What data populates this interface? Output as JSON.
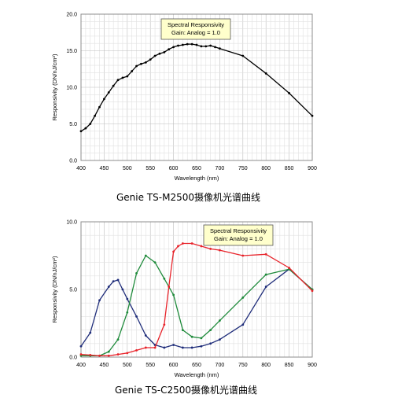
{
  "chart_data": [
    {
      "type": "line",
      "caption": "Genie TS-M2500摄像机光谱曲线",
      "annotation": [
        "Spectral Responsivity",
        "Gain: Analog = 1.0"
      ],
      "xlabel": "Wavelength (nm)",
      "ylabel": "Responsivity (DN/nJ/cm²)",
      "xlim": [
        400,
        900
      ],
      "ylim": [
        0,
        20
      ],
      "xticks": [
        "400",
        "450",
        "500",
        "550",
        "600",
        "650",
        "700",
        "750",
        "800",
        "850",
        "900"
      ],
      "yticks": [
        "0.0",
        "5.0",
        "10.0",
        "15.0",
        "20.0"
      ],
      "grid": true,
      "series": [
        {
          "color": "#000000",
          "x": [
            400,
            410,
            420,
            430,
            440,
            450,
            460,
            470,
            480,
            490,
            500,
            510,
            520,
            530,
            540,
            550,
            560,
            570,
            580,
            590,
            600,
            610,
            620,
            630,
            640,
            650,
            660,
            670,
            680,
            690,
            700,
            750,
            800,
            850,
            900
          ],
          "y": [
            4.0,
            4.4,
            5.0,
            6.1,
            7.3,
            8.4,
            9.3,
            10.2,
            11.0,
            11.3,
            11.5,
            12.2,
            12.9,
            13.2,
            13.4,
            13.8,
            14.3,
            14.6,
            14.8,
            15.2,
            15.5,
            15.7,
            15.8,
            15.9,
            15.9,
            15.8,
            15.6,
            15.6,
            15.7,
            15.5,
            15.3,
            14.3,
            11.9,
            9.2,
            6.1
          ]
        }
      ]
    },
    {
      "type": "line",
      "caption": "Genie TS-C2500摄像机光谱曲线",
      "annotation": [
        "Spectral Responsivity",
        "Gain: Analog = 1.0"
      ],
      "xlabel": "Wavelength (nm)",
      "ylabel": "Responsivity (DN/nJ/cm²)",
      "xlim": [
        400,
        900
      ],
      "ylim": [
        0,
        10
      ],
      "xticks": [
        "400",
        "450",
        "500",
        "550",
        "600",
        "650",
        "700",
        "750",
        "800",
        "850",
        "900"
      ],
      "yticks": [
        "0.0",
        "5.0",
        "10.0"
      ],
      "grid": true,
      "series": [
        {
          "color": "#1f2d7a",
          "x": [
            400,
            420,
            440,
            460,
            470,
            480,
            490,
            500,
            520,
            540,
            560,
            580,
            600,
            620,
            640,
            660,
            680,
            700,
            750,
            800,
            850,
            900
          ],
          "y": [
            0.8,
            1.8,
            4.2,
            5.2,
            5.6,
            5.7,
            5.0,
            4.3,
            3.0,
            1.6,
            0.9,
            0.7,
            0.9,
            0.7,
            0.7,
            0.8,
            1.0,
            1.3,
            2.4,
            5.2,
            6.5,
            5.0
          ]
        },
        {
          "color": "#1e8a3a",
          "x": [
            400,
            420,
            440,
            460,
            480,
            500,
            520,
            540,
            560,
            580,
            600,
            620,
            640,
            660,
            680,
            700,
            750,
            800,
            850,
            900
          ],
          "y": [
            0.1,
            0.1,
            0.1,
            0.4,
            1.3,
            3.3,
            6.2,
            7.5,
            7.0,
            5.8,
            4.6,
            2.0,
            1.5,
            1.4,
            2.0,
            2.7,
            4.4,
            6.1,
            6.5,
            5.0
          ]
        },
        {
          "color": "#e8232a",
          "x": [
            400,
            420,
            440,
            460,
            480,
            500,
            520,
            540,
            560,
            580,
            590,
            600,
            610,
            620,
            640,
            660,
            680,
            700,
            750,
            800,
            850,
            900
          ],
          "y": [
            0.2,
            0.15,
            0.1,
            0.1,
            0.2,
            0.3,
            0.5,
            0.7,
            0.7,
            2.4,
            5.2,
            7.8,
            8.2,
            8.4,
            8.4,
            8.2,
            8.0,
            7.9,
            7.5,
            7.6,
            6.6,
            4.9
          ]
        }
      ]
    }
  ]
}
